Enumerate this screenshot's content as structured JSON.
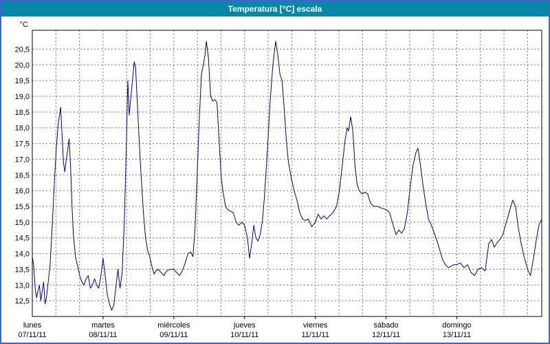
{
  "window": {
    "title": "Temperatura [°C] escala"
  },
  "colors": {
    "titlebar_bg": "#0886a6",
    "window_border": "#3a67c8",
    "line": "#000080",
    "grid": "#707070",
    "plot_border": "#000000",
    "background": "#ffffff"
  },
  "chart_data": {
    "type": "line",
    "title": "Temperatura [°C] escala",
    "y_unit_label": "°C",
    "ylabel": "",
    "xlabel": "",
    "ylim": [
      12.0,
      21.1
    ],
    "y_tick_step": 0.5,
    "y_ticks": [
      12.5,
      13.0,
      13.5,
      14.0,
      14.5,
      15.0,
      15.5,
      16.0,
      16.5,
      17.0,
      17.5,
      18.0,
      18.5,
      19.0,
      19.5,
      20.0,
      20.5
    ],
    "y_tick_labels": [
      "12,5",
      "13,0",
      "13,5",
      "14,0",
      "14,5",
      "15,0",
      "15,5",
      "16,0",
      "16,5",
      "17,0",
      "17,5",
      "18,0",
      "18,5",
      "19,0",
      "19,5",
      "20,0",
      "20,5"
    ],
    "xlim_days": [
      0,
      7.2
    ],
    "x_grid_step_days": 0.33333,
    "grid": "dashed",
    "legend_position": "none",
    "x_days": [
      {
        "name": "lunes",
        "date": "07/11/11"
      },
      {
        "name": "martes",
        "date": "08/11/11"
      },
      {
        "name": "miércoles",
        "date": "09/11/11"
      },
      {
        "name": "jueves",
        "date": "10/11/11"
      },
      {
        "name": "viernes",
        "date": "11/11/11"
      },
      {
        "name": "sábado",
        "date": "12/11/11"
      },
      {
        "name": "domingo",
        "date": "13/11/11"
      }
    ],
    "series": [
      {
        "name": "Temperatura",
        "color": "#000080",
        "points": [
          [
            0.0,
            13.9
          ],
          [
            0.02,
            13.6
          ],
          [
            0.04,
            12.9
          ],
          [
            0.06,
            12.6
          ],
          [
            0.08,
            12.8
          ],
          [
            0.1,
            13.0
          ],
          [
            0.12,
            12.5
          ],
          [
            0.14,
            12.8
          ],
          [
            0.16,
            13.1
          ],
          [
            0.18,
            12.4
          ],
          [
            0.2,
            12.6
          ],
          [
            0.22,
            13.0
          ],
          [
            0.25,
            13.6
          ],
          [
            0.28,
            14.8
          ],
          [
            0.31,
            16.2
          ],
          [
            0.34,
            17.4
          ],
          [
            0.37,
            18.2
          ],
          [
            0.4,
            18.65
          ],
          [
            0.42,
            17.8
          ],
          [
            0.44,
            16.9
          ],
          [
            0.46,
            16.6
          ],
          [
            0.48,
            17.0
          ],
          [
            0.5,
            17.3
          ],
          [
            0.52,
            17.65
          ],
          [
            0.54,
            16.8
          ],
          [
            0.56,
            15.6
          ],
          [
            0.58,
            14.6
          ],
          [
            0.61,
            13.9
          ],
          [
            0.64,
            13.6
          ],
          [
            0.67,
            13.3
          ],
          [
            0.7,
            13.1
          ],
          [
            0.73,
            13.0
          ],
          [
            0.76,
            13.2
          ],
          [
            0.79,
            13.3
          ],
          [
            0.82,
            12.9
          ],
          [
            0.85,
            13.0
          ],
          [
            0.88,
            13.2
          ],
          [
            0.91,
            13.0
          ],
          [
            0.94,
            12.9
          ],
          [
            0.97,
            13.3
          ],
          [
            1.0,
            13.85
          ],
          [
            1.03,
            13.3
          ],
          [
            1.06,
            12.7
          ],
          [
            1.09,
            12.4
          ],
          [
            1.12,
            12.2
          ],
          [
            1.15,
            12.35
          ],
          [
            1.18,
            12.9
          ],
          [
            1.21,
            13.5
          ],
          [
            1.24,
            12.9
          ],
          [
            1.27,
            13.4
          ],
          [
            1.3,
            15.0
          ],
          [
            1.33,
            17.5
          ],
          [
            1.35,
            19.5
          ],
          [
            1.37,
            18.4
          ],
          [
            1.39,
            18.9
          ],
          [
            1.42,
            19.6
          ],
          [
            1.44,
            20.1
          ],
          [
            1.46,
            19.9
          ],
          [
            1.48,
            19.0
          ],
          [
            1.51,
            17.6
          ],
          [
            1.54,
            16.4
          ],
          [
            1.57,
            15.3
          ],
          [
            1.6,
            14.5
          ],
          [
            1.63,
            14.1
          ],
          [
            1.66,
            13.9
          ],
          [
            1.69,
            13.6
          ],
          [
            1.72,
            13.35
          ],
          [
            1.75,
            13.45
          ],
          [
            1.78,
            13.5
          ],
          [
            1.82,
            13.4
          ],
          [
            1.86,
            13.3
          ],
          [
            1.9,
            13.45
          ],
          [
            1.95,
            13.5
          ],
          [
            2.0,
            13.5
          ],
          [
            2.04,
            13.4
          ],
          [
            2.08,
            13.3
          ],
          [
            2.12,
            13.45
          ],
          [
            2.16,
            13.7
          ],
          [
            2.2,
            14.0
          ],
          [
            2.24,
            14.05
          ],
          [
            2.27,
            13.9
          ],
          [
            2.3,
            14.8
          ],
          [
            2.33,
            16.5
          ],
          [
            2.36,
            18.3
          ],
          [
            2.39,
            19.7
          ],
          [
            2.42,
            20.05
          ],
          [
            2.44,
            20.3
          ],
          [
            2.46,
            20.75
          ],
          [
            2.49,
            20.2
          ],
          [
            2.52,
            19.0
          ],
          [
            2.55,
            18.85
          ],
          [
            2.58,
            18.9
          ],
          [
            2.61,
            18.8
          ],
          [
            2.64,
            17.6
          ],
          [
            2.67,
            16.4
          ],
          [
            2.7,
            15.9
          ],
          [
            2.73,
            15.5
          ],
          [
            2.76,
            15.4
          ],
          [
            2.8,
            15.35
          ],
          [
            2.84,
            15.3
          ],
          [
            2.88,
            15.0
          ],
          [
            2.92,
            14.9
          ],
          [
            2.96,
            15.0
          ],
          [
            3.0,
            14.9
          ],
          [
            3.04,
            14.5
          ],
          [
            3.07,
            13.85
          ],
          [
            3.1,
            14.3
          ],
          [
            3.13,
            14.9
          ],
          [
            3.16,
            14.5
          ],
          [
            3.19,
            14.4
          ],
          [
            3.22,
            14.6
          ],
          [
            3.25,
            15.0
          ],
          [
            3.28,
            15.8
          ],
          [
            3.32,
            17.2
          ],
          [
            3.36,
            18.8
          ],
          [
            3.4,
            20.0
          ],
          [
            3.44,
            20.75
          ],
          [
            3.47,
            20.3
          ],
          [
            3.5,
            19.7
          ],
          [
            3.53,
            19.5
          ],
          [
            3.56,
            18.6
          ],
          [
            3.59,
            17.6
          ],
          [
            3.62,
            16.9
          ],
          [
            3.66,
            16.4
          ],
          [
            3.7,
            16.0
          ],
          [
            3.74,
            15.7
          ],
          [
            3.78,
            15.3
          ],
          [
            3.82,
            15.1
          ],
          [
            3.86,
            15.05
          ],
          [
            3.9,
            15.1
          ],
          [
            3.95,
            14.85
          ],
          [
            4.0,
            15.0
          ],
          [
            4.04,
            15.25
          ],
          [
            4.08,
            15.1
          ],
          [
            4.12,
            15.2
          ],
          [
            4.16,
            15.1
          ],
          [
            4.2,
            15.2
          ],
          [
            4.25,
            15.3
          ],
          [
            4.3,
            15.5
          ],
          [
            4.34,
            16.0
          ],
          [
            4.38,
            16.8
          ],
          [
            4.42,
            17.6
          ],
          [
            4.45,
            18.0
          ],
          [
            4.47,
            17.9
          ],
          [
            4.5,
            18.35
          ],
          [
            4.53,
            17.9
          ],
          [
            4.56,
            16.8
          ],
          [
            4.59,
            16.2
          ],
          [
            4.62,
            16.0
          ],
          [
            4.66,
            15.9
          ],
          [
            4.7,
            15.95
          ],
          [
            4.74,
            15.9
          ],
          [
            4.78,
            15.6
          ],
          [
            4.83,
            15.5
          ],
          [
            4.88,
            15.5
          ],
          [
            4.93,
            15.45
          ],
          [
            5.0,
            15.4
          ],
          [
            5.05,
            15.3
          ],
          [
            5.1,
            14.9
          ],
          [
            5.14,
            14.6
          ],
          [
            5.18,
            14.75
          ],
          [
            5.22,
            14.65
          ],
          [
            5.26,
            14.8
          ],
          [
            5.3,
            15.3
          ],
          [
            5.34,
            16.1
          ],
          [
            5.38,
            16.8
          ],
          [
            5.42,
            17.2
          ],
          [
            5.45,
            17.35
          ],
          [
            5.48,
            16.9
          ],
          [
            5.52,
            16.2
          ],
          [
            5.56,
            15.6
          ],
          [
            5.6,
            15.1
          ],
          [
            5.64,
            14.9
          ],
          [
            5.68,
            14.65
          ],
          [
            5.72,
            14.4
          ],
          [
            5.76,
            14.1
          ],
          [
            5.8,
            13.8
          ],
          [
            5.84,
            13.65
          ],
          [
            5.88,
            13.55
          ],
          [
            5.92,
            13.6
          ],
          [
            5.96,
            13.65
          ],
          [
            6.0,
            13.65
          ],
          [
            6.05,
            13.7
          ],
          [
            6.1,
            13.55
          ],
          [
            6.15,
            13.65
          ],
          [
            6.2,
            13.4
          ],
          [
            6.25,
            13.3
          ],
          [
            6.3,
            13.5
          ],
          [
            6.35,
            13.55
          ],
          [
            6.4,
            13.45
          ],
          [
            6.45,
            14.3
          ],
          [
            6.49,
            14.45
          ],
          [
            6.53,
            14.2
          ],
          [
            6.57,
            14.35
          ],
          [
            6.61,
            14.45
          ],
          [
            6.65,
            14.6
          ],
          [
            6.7,
            15.0
          ],
          [
            6.75,
            15.4
          ],
          [
            6.79,
            15.7
          ],
          [
            6.83,
            15.5
          ],
          [
            6.87,
            14.8
          ],
          [
            6.91,
            14.3
          ],
          [
            6.95,
            13.9
          ],
          [
            7.0,
            13.5
          ],
          [
            7.04,
            13.3
          ],
          [
            7.08,
            13.8
          ],
          [
            7.12,
            14.4
          ],
          [
            7.16,
            14.9
          ],
          [
            7.2,
            15.1
          ]
        ]
      }
    ]
  }
}
